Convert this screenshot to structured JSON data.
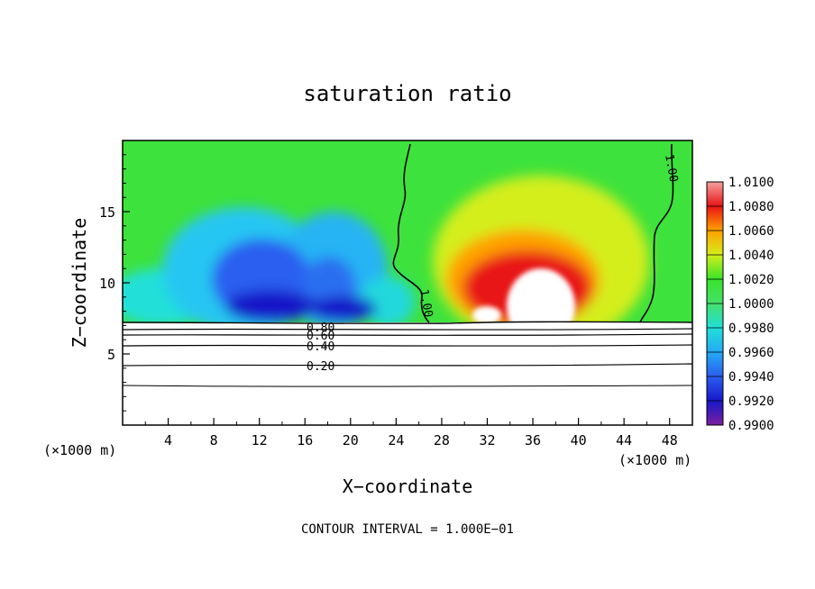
{
  "chart_data": {
    "type": "heatmap",
    "title": "saturation ratio",
    "xlabel": "X−coordinate",
    "ylabel": "Z−coordinate",
    "x_units_left": "(×1000 m)",
    "x_units_right": "(×1000 m)",
    "xlim": [
      0,
      50
    ],
    "ylim": [
      0,
      20
    ],
    "x_ticks": [
      4,
      8,
      12,
      16,
      20,
      24,
      28,
      32,
      36,
      40,
      44,
      48
    ],
    "y_ticks": [
      5,
      10,
      15
    ],
    "footer": "CONTOUR INTERVAL = 1.000E−01",
    "colorbar": {
      "ticks": [
        "1.0100",
        "1.0080",
        "1.0060",
        "1.0040",
        "1.0020",
        "1.0000",
        "0.9980",
        "0.9960",
        "0.9940",
        "0.9920",
        "0.9900"
      ],
      "range": [
        0.99,
        1.01
      ],
      "colors": [
        "#7a1fa0",
        "#1818c8",
        "#2a5ef0",
        "#25aaf5",
        "#20e0d8",
        "#44e06a",
        "#38e42a",
        "#d4ee1a",
        "#ffa000",
        "#e81414",
        "#f5a0a0"
      ]
    },
    "contour_labels": [
      "1.00",
      "1.00",
      "1.00",
      "0.80",
      "0.60",
      "0.40",
      "0.20"
    ],
    "contour_levels_lower": [
      0.2,
      0.4,
      0.6,
      0.8
    ],
    "cloud_base_km": 7.2
  }
}
